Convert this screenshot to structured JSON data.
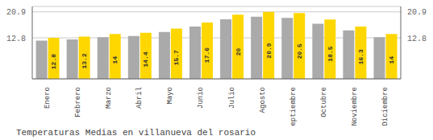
{
  "chart_data": {
    "type": "bar",
    "title": "Temperaturas Medias en villanueva del rosario",
    "categories": [
      "Enero",
      "Febrero",
      "Marzo",
      "Abril",
      "Mayo",
      "Junio",
      "Julio",
      "Agosto",
      "Septiembre",
      "Octubre",
      "Noviembre",
      "Diciembre"
    ],
    "series": [
      {
        "color": "#AAAAAA",
        "values": [
          11.9,
          12.3,
          13.0,
          13.4,
          14.6,
          16.3,
          18.6,
          19.4,
          19.0,
          17.2,
          15.1,
          13.0
        ]
      },
      {
        "color": "#FFD700",
        "data_labels": true,
        "values": [
          12.8,
          13.2,
          14.0,
          14.4,
          15.7,
          17.6,
          20.0,
          20.9,
          20.5,
          18.5,
          16.3,
          14.0
        ]
      }
    ],
    "ylim": [
      0,
      22.6
    ],
    "yticks": [
      12.8,
      20.9
    ],
    "y2lim": [
      0,
      22.6
    ],
    "y2ticks": [
      12.8,
      20.9
    ],
    "grid": true
  }
}
